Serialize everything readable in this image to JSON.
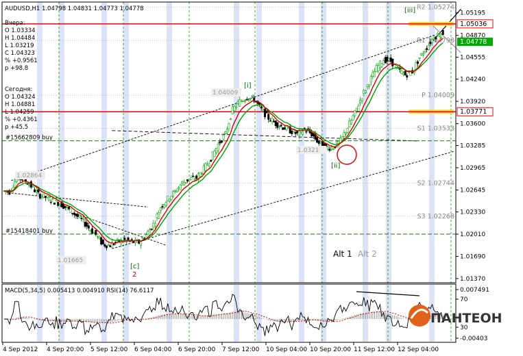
{
  "header": {
    "symbol": "AUDUSD,H1",
    "open": "1.04798",
    "high": "1.04831",
    "low": "1.04773",
    "close": "1.04778"
  },
  "yesterday_panel": {
    "title": "Вчера:",
    "lines": [
      "O 1.03334",
      "H 1.04484",
      "L 1.03219",
      "C 1.04323",
      "% +0.9561",
      "p +98.8"
    ]
  },
  "today_panel": {
    "title": "Сегодня:",
    "lines": [
      "O 1.04324",
      "H 1.04881",
      "L 1.04259",
      "% +0.4361",
      "p +45.5"
    ]
  },
  "orders": [
    {
      "label": "#15662809 buy",
      "price": 1.03353
    },
    {
      "label": "#15418401 buy",
      "price": 1.0201
    }
  ],
  "colors": {
    "bull": "#00aa00",
    "bear": "#000000",
    "ma_fast": "#d40000",
    "ma_slow": "#00a000",
    "resistance": "#ee0000",
    "pivot_gray": "#a0a0a0",
    "session_band": "#dde3f7",
    "current_price_bg": "#00aa00"
  },
  "horizontal_levels": [
    {
      "label": "1.05036",
      "price": 1.05036,
      "kind": "resistance"
    },
    {
      "label": "1.03771",
      "price": 1.03771,
      "kind": "resistance"
    }
  ],
  "pivots": [
    {
      "label": "R2 1.05274",
      "price": 1.05274
    },
    {
      "label": "R1 1.04798",
      "price": 1.04798
    },
    {
      "label": "P 1.04009",
      "price": 1.04009
    },
    {
      "label": "S1 1.03533",
      "price": 1.03533
    },
    {
      "label": "S2 1.02744",
      "price": 1.02744
    },
    {
      "label": "S3 1.02268",
      "price": 1.02268
    }
  ],
  "current_price_label": "1.04778",
  "wave_labels": [
    {
      "text": "[i]",
      "color": "#006400"
    },
    {
      "text": "[ii]",
      "color": "#006400"
    },
    {
      "text": "[iii]",
      "color": "#006400"
    },
    {
      "text": "[c]",
      "color": "#006400"
    },
    {
      "text": "2",
      "color": "#cc0000"
    }
  ],
  "gray_price_tags": [
    "1.04009",
    "1.02864",
    "1.01665",
    "1.0321"
  ],
  "alt_labels": [
    {
      "text": "Alt 1",
      "color": "#000000"
    },
    {
      "text": "Alt 2",
      "color": "#999999"
    }
  ],
  "indicator_header": "MACD(5,34,5) 0.005413 0.004910 RSI(14) 76.6117",
  "indicator_axis": [
    "0.007491",
    "70",
    "30",
    "-0.00403"
  ],
  "logo": {
    "text": "ПАНТЕОН"
  },
  "chart_data": {
    "type": "candlestick",
    "y_ticks": [
      "1.05195",
      "1.04870",
      "1.04555",
      "1.04240",
      "1.03920",
      "1.03600",
      "1.03285",
      "1.02965",
      "1.02645",
      "1.02330",
      "1.02010",
      "1.01690",
      "1.01370"
    ],
    "ylim": [
      1.0131,
      1.0535
    ],
    "x_ticks": [
      "4 Sep 2012",
      "4 Sep 20:00",
      "5 Sep 12:00",
      "6 Sep 04:00",
      "6 Sep 20:00",
      "7 Sep 12:00",
      "10 Sep 04:00",
      "10 Sep 20:00",
      "11 Sep 12:00",
      "12 Sep 04:00"
    ],
    "price_path": [
      [
        0,
        1.0263
      ],
      [
        4,
        1.0262
      ],
      [
        8,
        1.0282
      ],
      [
        12,
        1.028
      ],
      [
        16,
        1.027
      ],
      [
        20,
        1.0258
      ],
      [
        24,
        1.0254
      ],
      [
        28,
        1.0249
      ],
      [
        32,
        1.0245
      ],
      [
        36,
        1.0238
      ],
      [
        40,
        1.023
      ],
      [
        44,
        1.0222
      ],
      [
        48,
        1.021
      ],
      [
        52,
        1.02
      ],
      [
        56,
        1.0186
      ],
      [
        60,
        1.0185
      ],
      [
        64,
        1.019
      ],
      [
        68,
        1.0192
      ],
      [
        72,
        1.019
      ],
      [
        76,
        1.0189
      ],
      [
        80,
        1.02
      ],
      [
        84,
        1.0215
      ],
      [
        88,
        1.024
      ],
      [
        92,
        1.0252
      ],
      [
        96,
        1.0262
      ],
      [
        100,
        1.0275
      ],
      [
        104,
        1.028
      ],
      [
        108,
        1.0282
      ],
      [
        112,
        1.0295
      ],
      [
        116,
        1.031
      ],
      [
        120,
        1.033
      ],
      [
        124,
        1.0345
      ],
      [
        128,
        1.038
      ],
      [
        132,
        1.0392
      ],
      [
        136,
        1.0398
      ],
      [
        140,
        1.0395
      ],
      [
        144,
        1.038
      ],
      [
        148,
        1.0368
      ],
      [
        152,
        1.036
      ],
      [
        156,
        1.0355
      ],
      [
        160,
        1.035
      ],
      [
        164,
        1.0345
      ],
      [
        168,
        1.0352
      ],
      [
        172,
        1.0345
      ],
      [
        176,
        1.0332
      ],
      [
        180,
        1.0325
      ],
      [
        184,
        1.0326
      ],
      [
        188,
        1.0335
      ],
      [
        192,
        1.0355
      ],
      [
        196,
        1.0375
      ],
      [
        200,
        1.04
      ],
      [
        204,
        1.042
      ],
      [
        208,
        1.044
      ],
      [
        212,
        1.0452
      ],
      [
        216,
        1.045
      ],
      [
        220,
        1.0438
      ],
      [
        224,
        1.043
      ],
      [
        228,
        1.0435
      ],
      [
        232,
        1.0455
      ],
      [
        236,
        1.047
      ],
      [
        240,
        1.0485
      ],
      [
        244,
        1.049
      ]
    ]
  }
}
